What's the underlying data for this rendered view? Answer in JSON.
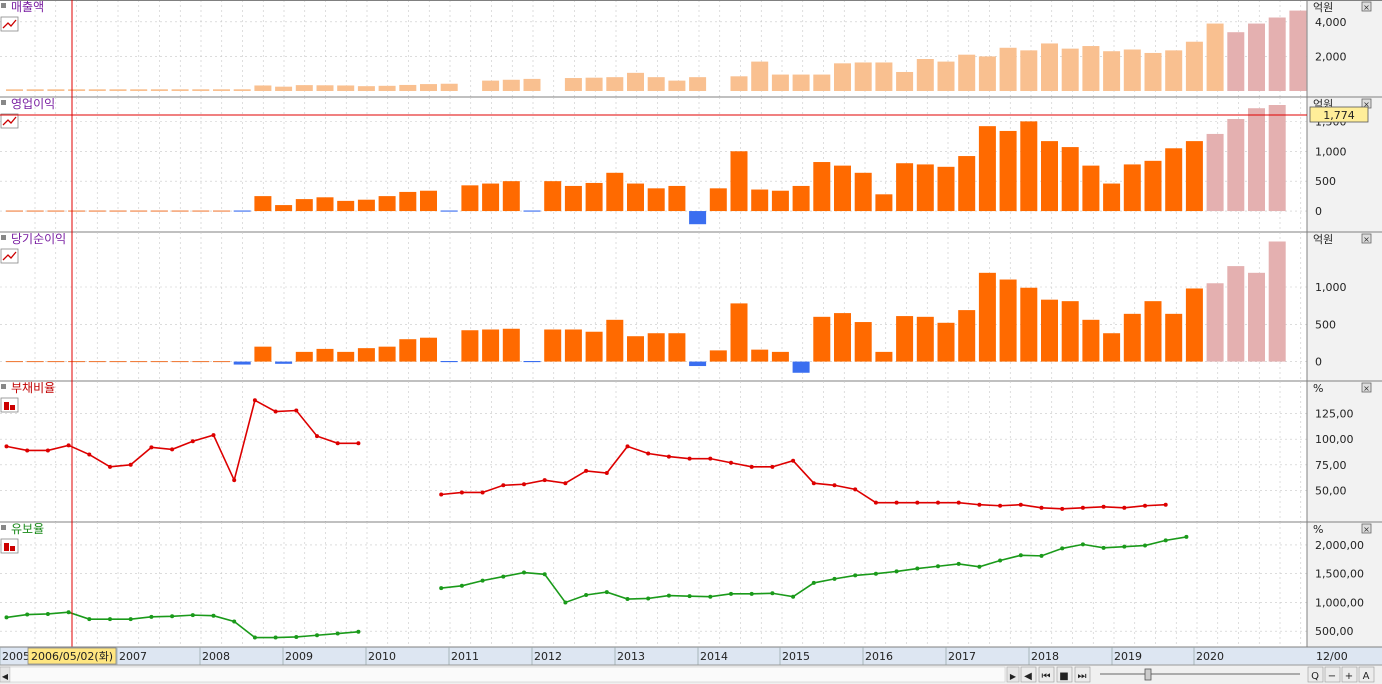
{
  "chart_data": [
    {
      "type": "bar",
      "title": "매출액",
      "unit": "억원",
      "y_ticks": [
        "2,000",
        "4,000"
      ],
      "ylim": [
        0,
        4800
      ],
      "values": [
        100,
        100,
        100,
        100,
        100,
        100,
        100,
        100,
        100,
        100,
        100,
        100,
        320,
        250,
        340,
        330,
        320,
        280,
        300,
        350,
        400,
        420,
        null,
        600,
        650,
        700,
        null,
        750,
        770,
        800,
        1050,
        800,
        600,
        800,
        null,
        850,
        1700,
        950,
        950,
        950,
        1600,
        1650,
        1650,
        1100,
        1850,
        1700,
        2100,
        2000,
        2500,
        2350,
        2750,
        2450,
        2600,
        2300,
        2400,
        2200,
        2350,
        2850,
        3900,
        3400,
        3900,
        4250,
        4650
      ],
      "highlight_last": 4
    },
    {
      "type": "bar",
      "title": "영업이익",
      "unit": "억원",
      "y_ticks": [
        "0",
        "500",
        "1,000",
        "1,500"
      ],
      "ylim": [
        -250,
        1774
      ],
      "current_value": "1,774",
      "values": [
        0,
        0,
        0,
        0,
        0,
        0,
        0,
        0,
        0,
        0,
        0,
        -10,
        250,
        100,
        200,
        230,
        170,
        190,
        250,
        320,
        340,
        -10,
        430,
        460,
        500,
        -10,
        500,
        420,
        470,
        640,
        460,
        380,
        420,
        -220,
        380,
        1000,
        360,
        340,
        420,
        820,
        760,
        640,
        280,
        800,
        780,
        740,
        920,
        1420,
        1340,
        1500,
        1170,
        1070,
        760,
        460,
        780,
        840,
        1050,
        1170,
        1290,
        1540,
        1720,
        1774
      ],
      "highlight_last": 4
    },
    {
      "type": "bar",
      "title": "당기순이익",
      "unit": "억원",
      "y_ticks": [
        "0",
        "500",
        "1,000"
      ],
      "ylim": [
        -180,
        1630
      ],
      "values": [
        0,
        0,
        0,
        0,
        0,
        0,
        0,
        0,
        0,
        0,
        0,
        -40,
        200,
        -30,
        130,
        170,
        130,
        180,
        200,
        300,
        320,
        -10,
        420,
        430,
        440,
        -10,
        430,
        430,
        400,
        560,
        340,
        380,
        380,
        -60,
        150,
        780,
        160,
        130,
        -150,
        600,
        650,
        530,
        130,
        610,
        600,
        520,
        690,
        1190,
        1100,
        990,
        830,
        810,
        560,
        380,
        640,
        810,
        640,
        980,
        1050,
        1280,
        1190,
        1610
      ],
      "highlight_last": 4
    },
    {
      "type": "line",
      "title": "부채비율",
      "unit": "%",
      "y_ticks": [
        "50,00",
        "75,00",
        "100,00",
        "125,00"
      ],
      "ylim": [
        25,
        149
      ],
      "values": [
        93,
        89,
        89,
        94,
        85,
        73,
        75,
        92,
        90,
        98,
        104,
        60,
        138,
        127,
        128,
        103,
        96,
        96,
        null,
        null,
        null,
        46,
        48,
        48,
        55,
        56,
        60,
        57,
        69,
        67,
        93,
        86,
        83,
        81,
        81,
        77,
        73,
        73,
        79,
        57,
        55,
        51,
        38,
        38,
        38,
        38,
        38,
        36,
        35,
        36,
        33,
        32,
        33,
        34,
        33,
        35,
        36
      ],
      "color": "#dd0000"
    },
    {
      "type": "line",
      "title": "유보율",
      "unit": "%",
      "y_ticks": [
        "500,00",
        "1,000,00",
        "1,500,00",
        "2,000,00"
      ],
      "ylim": [
        330,
        2260
      ],
      "values": [
        740,
        790,
        800,
        830,
        710,
        710,
        710,
        750,
        760,
        780,
        770,
        670,
        390,
        390,
        400,
        430,
        460,
        490,
        null,
        null,
        null,
        1250,
        1290,
        1380,
        1450,
        1520,
        1490,
        1000,
        1130,
        1180,
        1060,
        1070,
        1120,
        1110,
        1100,
        1150,
        1150,
        1160,
        1100,
        1340,
        1410,
        1470,
        1500,
        1540,
        1590,
        1630,
        1670,
        1620,
        1730,
        1820,
        1810,
        1940,
        2010,
        1950,
        1970,
        1990,
        2080,
        2140
      ],
      "color": "#1a9a1a"
    }
  ],
  "x_axis": {
    "years": [
      "2005",
      "2006/05/02(화)",
      "2007",
      "2008",
      "2009",
      "2010",
      "2011",
      "2012",
      "2013",
      "2014",
      "2015",
      "2016",
      "2017",
      "2018",
      "2019",
      "2020",
      "12/00"
    ]
  },
  "toolbar": {
    "right_arrow": "▶",
    "left_arrow": "◀",
    "items": [
      "◀",
      "⏮",
      "■",
      "⏭",
      "Q",
      "−",
      "+",
      "A"
    ]
  },
  "colors": {
    "bar_revenue": "#f9c090",
    "bar_profit": "#ff6a00",
    "bar_negative": "#3a6ef0",
    "bar_forecast": "#e4b0b0",
    "grid": "#c8c8c8",
    "cursor": "#e00000",
    "axis_panel": "#f2f2f2"
  }
}
